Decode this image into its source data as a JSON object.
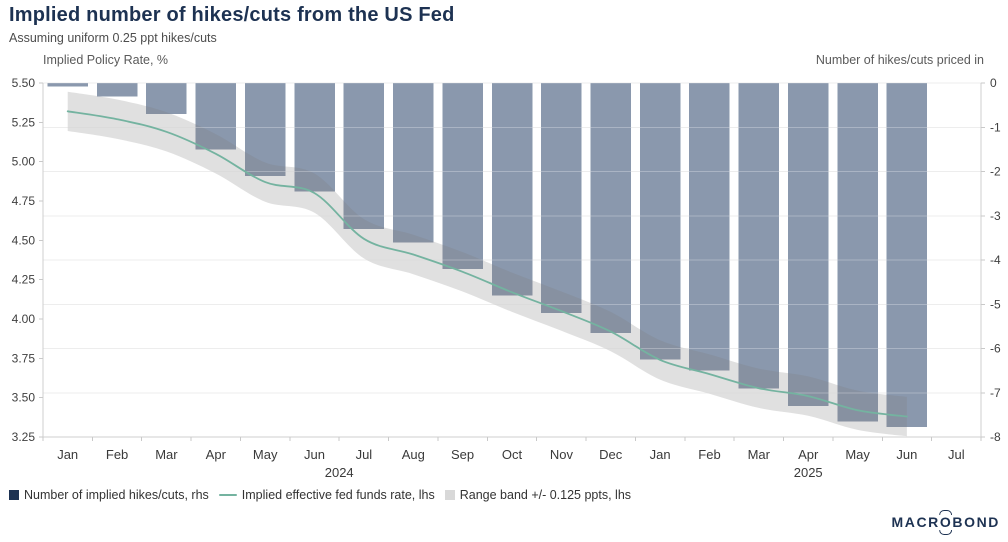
{
  "header": {
    "title": "Implied number of hikes/cuts from the US Fed",
    "subtitle": "Assuming uniform 0.25 ppt hikes/cuts"
  },
  "chart_data": {
    "type": "bar",
    "title": "Implied number of hikes/cuts from the US Fed",
    "subtitle": "Assuming uniform 0.25 ppt hikes/cuts",
    "grid": "horizontal, aligned to right axis integers",
    "left_axis": {
      "title": "Implied Policy Rate, %",
      "min": 3.25,
      "max": 5.5,
      "step": 0.25,
      "tick_labels": [
        "5.50",
        "5.25",
        "5.00",
        "4.75",
        "4.50",
        "4.25",
        "4.00",
        "3.75",
        "3.50",
        "3.25"
      ]
    },
    "right_axis": {
      "title": "Number of hikes/cuts priced in",
      "min": -8,
      "max": 0,
      "step": 1,
      "tick_labels": [
        "0",
        "-1",
        "-2",
        "-3",
        "-4",
        "-5",
        "-6",
        "-7",
        "-8"
      ]
    },
    "x_axis": {
      "month_labels": [
        "Jan",
        "Feb",
        "Mar",
        "Apr",
        "May",
        "Jun",
        "Jul",
        "Aug",
        "Sep",
        "Oct",
        "Nov",
        "Dec",
        "Jan",
        "Feb",
        "Mar",
        "Apr",
        "May",
        "Jun",
        "Jul"
      ],
      "years": [
        {
          "label": "2024",
          "from": 0,
          "to": 11
        },
        {
          "label": "2025",
          "from": 12,
          "to": 18
        }
      ]
    },
    "series": [
      {
        "name": "Number of implied hikes/cuts, rhs",
        "render": "bar",
        "axis": "right",
        "values": [
          -0.08,
          -0.3,
          -0.7,
          -1.5,
          -2.1,
          -2.45,
          -3.3,
          -3.6,
          -4.2,
          -4.8,
          -5.2,
          -5.65,
          -6.25,
          -6.5,
          -6.9,
          -7.3,
          -7.65,
          -7.77,
          null
        ]
      },
      {
        "name": "Implied effective fed funds rate, lhs",
        "render": "line",
        "axis": "left",
        "values": [
          5.32,
          5.27,
          5.19,
          5.05,
          4.87,
          4.8,
          4.51,
          4.41,
          4.3,
          4.17,
          4.05,
          3.92,
          3.74,
          3.65,
          3.56,
          3.51,
          3.42,
          3.38,
          null
        ]
      },
      {
        "name": "Range band +/- 0.125 ppts, lhs",
        "render": "band",
        "axis": "left",
        "center_series": 1,
        "half_width": 0.125
      }
    ]
  },
  "legend": {
    "items": [
      {
        "label": "Number of implied hikes/cuts, rhs",
        "swatch": "square",
        "color": "#1D3252"
      },
      {
        "label": "Implied effective fed funds rate, lhs",
        "swatch": "line",
        "color": "#74B3A0"
      },
      {
        "label": "Range band +/- 0.125 ppts, lhs",
        "swatch": "square",
        "color": "#D8D8D8"
      }
    ]
  },
  "branding": {
    "logo_left": "MACR",
    "logo_o": "O",
    "logo_right": "BOND"
  },
  "colors": {
    "bar": "#8A98AD",
    "line": "#74B3A0",
    "band": "rgba(127,127,127,0.24)",
    "navy": "#1D3252",
    "gridline": "#E6E6E6",
    "axis_line": "#CFCFCF",
    "tick_mark": "#C9C9C9"
  }
}
